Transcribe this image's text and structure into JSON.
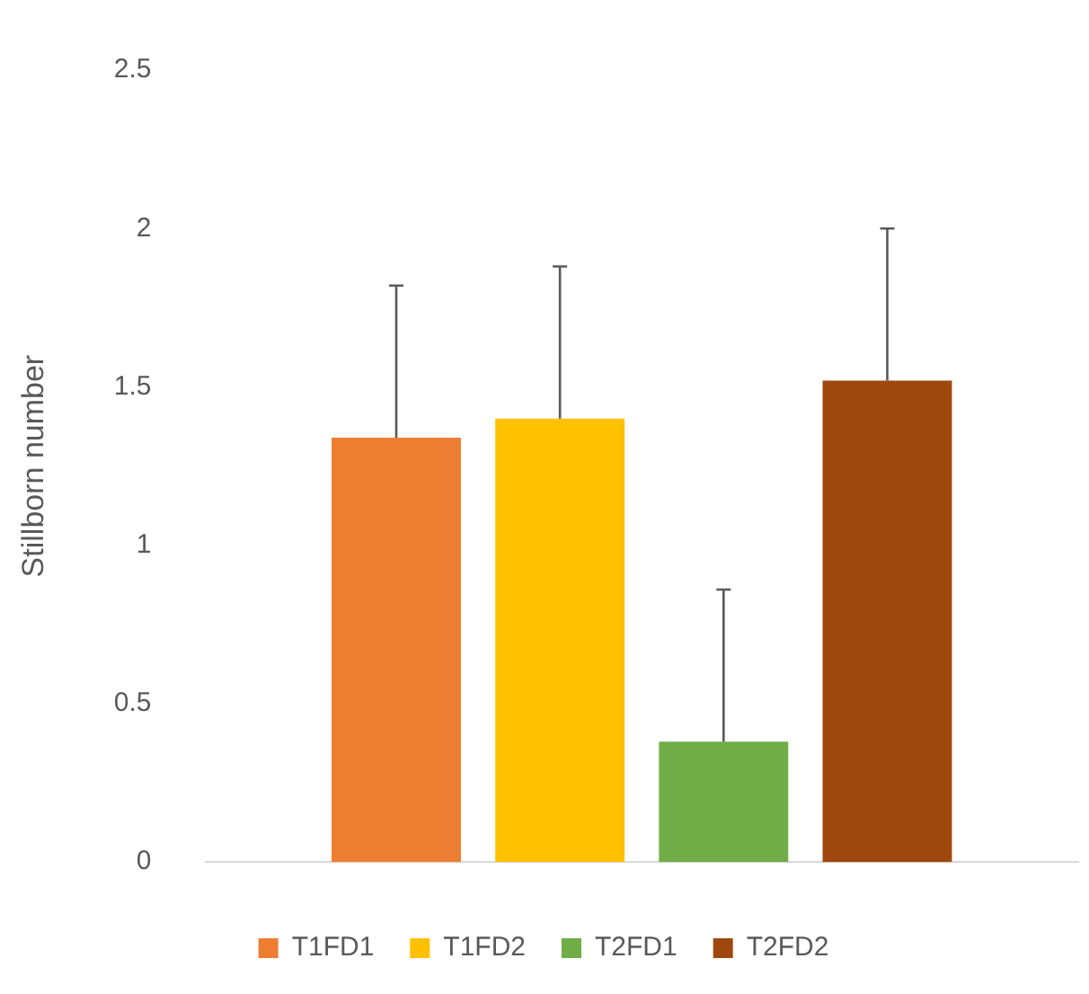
{
  "chart_data": {
    "type": "bar",
    "ylabel": "Stillborn number",
    "categories": [
      null
    ],
    "series": [
      {
        "name": "T1FD1",
        "color": "#ed7d31",
        "values": [
          1.34
        ],
        "errors": [
          [
            1.34,
            1.82
          ]
        ]
      },
      {
        "name": "T1FD2",
        "color": "#ffc000",
        "values": [
          1.4
        ],
        "errors": [
          [
            1.4,
            1.88
          ]
        ]
      },
      {
        "name": "T2FD1",
        "color": "#70ad47",
        "values": [
          0.38
        ],
        "errors": [
          [
            0.38,
            0.86
          ]
        ]
      },
      {
        "name": "T2FD2",
        "color": "#9e480e",
        "values": [
          1.52
        ],
        "errors": [
          [
            1.52,
            2.0
          ]
        ]
      }
    ],
    "ylim": [
      0,
      2.5
    ],
    "yticks": [
      0,
      0.5,
      1,
      1.5,
      2,
      2.5
    ],
    "grid": false,
    "legend": "bottom"
  }
}
